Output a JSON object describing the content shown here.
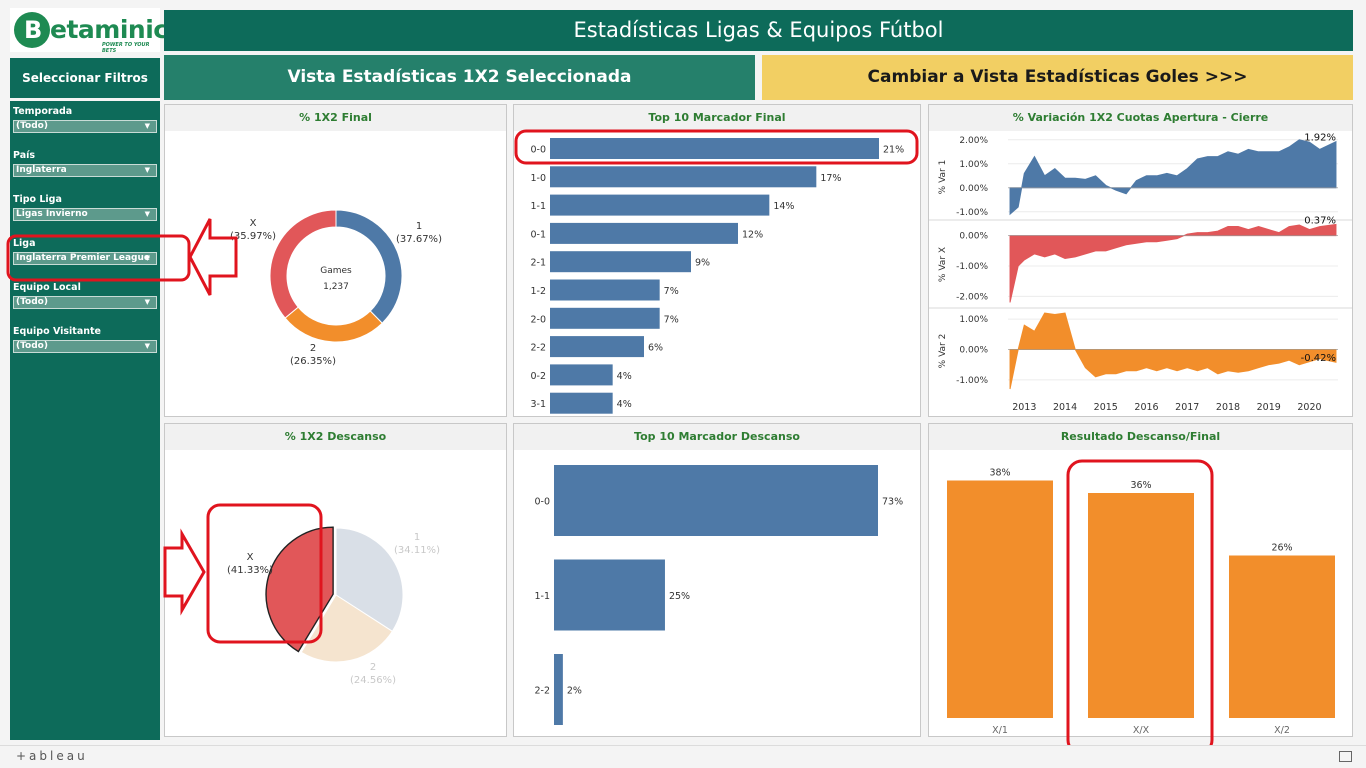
{
  "brand": {
    "name": "Betaminic",
    "initial": "B",
    "rest": "etaminic",
    "tagline": "POWER TO YOUR BETS"
  },
  "header": {
    "title": "Estadísticas Ligas & Equipos Fútbol"
  },
  "filters": {
    "heading": "Seleccionar Filtros",
    "items": [
      {
        "label": "Temporada",
        "value": "(Todo)"
      },
      {
        "label": "País",
        "value": "Inglaterra"
      },
      {
        "label": "Tipo Liga",
        "value": "Ligas Invierno"
      },
      {
        "label": "Liga",
        "value": "Inglaterra Premier League"
      },
      {
        "label": "Equipo Local",
        "value": "(Todo)"
      },
      {
        "label": "Equipo Visitante",
        "value": "(Todo)"
      }
    ]
  },
  "view": {
    "current": "Vista Estadísticas 1X2 Seleccionada",
    "switch": "Cambiar a Vista Estadísticas Goles >>>"
  },
  "footer": {
    "logo": "+ableau"
  },
  "colors": {
    "home": "#4e79a7",
    "draw": "#e15759",
    "away": "#f28e2b",
    "green": "#0d6b5a",
    "yellow": "#f2cf63",
    "highlight": "#e0141e"
  },
  "chart_data": [
    {
      "id": "final_1x2",
      "title": "% 1X2 Final",
      "type": "pie",
      "donut": true,
      "center_label": "Games",
      "center_value": "1,237",
      "slices": [
        {
          "name": "1",
          "pct": "(37.67%)",
          "value": 37.67,
          "color": "#4e79a7"
        },
        {
          "name": "2",
          "pct": "(26.35%)",
          "value": 26.35,
          "color": "#f28e2b"
        },
        {
          "name": "X",
          "pct": "(35.97%)",
          "value": 35.97,
          "color": "#e15759"
        }
      ]
    },
    {
      "id": "top10_final",
      "title": "Top 10 Marcador Final",
      "type": "bar",
      "orientation": "horizontal",
      "xlim": [
        0,
        21
      ],
      "categories": [
        "0-0",
        "1-0",
        "1-1",
        "0-1",
        "2-1",
        "1-2",
        "2-0",
        "2-2",
        "0-2",
        "3-1"
      ],
      "values": [
        21,
        17,
        14,
        12,
        9,
        7,
        7,
        6,
        4,
        4
      ],
      "labels": [
        "21%",
        "17%",
        "14%",
        "12%",
        "9%",
        "7%",
        "7%",
        "6%",
        "4%",
        "4%"
      ]
    },
    {
      "id": "variacion",
      "title": "% Variación 1X2 Cuotas Apertura - Cierre",
      "type": "area",
      "x_ticks": [
        "2013",
        "2014",
        "2015",
        "2016",
        "2017",
        "2018",
        "2019",
        "2020"
      ],
      "xlim": [
        2012.6,
        2020.7
      ],
      "panels": [
        {
          "ylabel": "% Var 1",
          "color": "#4e79a7",
          "ylim": [
            -1.3,
            2.2
          ],
          "ticks": [
            2,
            1,
            0,
            -1
          ],
          "tick_labels": [
            "2.00%",
            "1.00%",
            "0.00%",
            "-1.00%"
          ],
          "last_label": "1.92%",
          "x": [
            2012.65,
            2012.85,
            2013.0,
            2013.25,
            2013.5,
            2013.75,
            2014.0,
            2014.25,
            2014.5,
            2014.75,
            2015.0,
            2015.25,
            2015.5,
            2015.75,
            2016.0,
            2016.25,
            2016.5,
            2016.75,
            2017.0,
            2017.25,
            2017.5,
            2017.75,
            2018.0,
            2018.25,
            2018.5,
            2018.75,
            2019.0,
            2019.25,
            2019.5,
            2019.75,
            2020.0,
            2020.25,
            2020.65
          ],
          "y": [
            -1.1,
            -0.8,
            0.6,
            1.3,
            0.5,
            0.8,
            0.4,
            0.4,
            0.35,
            0.5,
            0.1,
            -0.1,
            -0.25,
            0.3,
            0.5,
            0.5,
            0.6,
            0.5,
            0.8,
            1.2,
            1.3,
            1.3,
            1.5,
            1.4,
            1.6,
            1.5,
            1.5,
            1.5,
            1.7,
            2.0,
            1.9,
            1.6,
            1.92
          ]
        },
        {
          "ylabel": "% Var X",
          "color": "#e15759",
          "ylim": [
            -2.35,
            0.45
          ],
          "ticks": [
            0,
            -1,
            -2
          ],
          "tick_labels": [
            "0.00%",
            "-1.00%",
            "-2.00%"
          ],
          "last_label": "0.37%",
          "x": [
            2012.65,
            2012.85,
            2013.0,
            2013.25,
            2013.5,
            2013.75,
            2014.0,
            2014.25,
            2014.5,
            2014.75,
            2015.0,
            2015.25,
            2015.5,
            2015.75,
            2016.0,
            2016.25,
            2016.5,
            2016.75,
            2017.0,
            2017.25,
            2017.5,
            2017.75,
            2018.0,
            2018.25,
            2018.5,
            2018.75,
            2019.0,
            2019.25,
            2019.5,
            2019.75,
            2020.0,
            2020.25,
            2020.65
          ],
          "y": [
            -2.2,
            -1.0,
            -0.8,
            -0.6,
            -0.7,
            -0.6,
            -0.75,
            -0.7,
            -0.6,
            -0.5,
            -0.5,
            -0.4,
            -0.3,
            -0.25,
            -0.2,
            -0.2,
            -0.15,
            -0.1,
            0.05,
            0.1,
            0.1,
            0.15,
            0.3,
            0.3,
            0.2,
            0.3,
            0.2,
            0.1,
            0.3,
            0.35,
            0.2,
            0.3,
            0.37
          ]
        },
        {
          "ylabel": "% Var 2",
          "color": "#f28e2b",
          "ylim": [
            -1.4,
            1.3
          ],
          "ticks": [
            1,
            0,
            -1
          ],
          "tick_labels": [
            "1.00%",
            "0.00%",
            "-1.00%"
          ],
          "last_label": "-0.42%",
          "x": [
            2012.65,
            2012.85,
            2013.0,
            2013.25,
            2013.5,
            2013.75,
            2014.0,
            2014.25,
            2014.5,
            2014.75,
            2015.0,
            2015.25,
            2015.5,
            2015.75,
            2016.0,
            2016.25,
            2016.5,
            2016.75,
            2017.0,
            2017.25,
            2017.5,
            2017.75,
            2018.0,
            2018.25,
            2018.5,
            2018.75,
            2019.0,
            2019.25,
            2019.5,
            2019.75,
            2020.0,
            2020.25,
            2020.65
          ],
          "y": [
            -1.3,
            0.0,
            0.8,
            0.6,
            1.2,
            1.15,
            1.2,
            0.0,
            -0.6,
            -0.9,
            -0.8,
            -0.8,
            -0.7,
            -0.7,
            -0.6,
            -0.7,
            -0.6,
            -0.7,
            -0.6,
            -0.7,
            -0.6,
            -0.8,
            -0.7,
            -0.75,
            -0.7,
            -0.6,
            -0.5,
            -0.45,
            -0.35,
            -0.5,
            -0.4,
            -0.3,
            -0.42
          ]
        }
      ]
    },
    {
      "id": "descanso_1x2",
      "title": "% 1X2 Descanso",
      "type": "pie",
      "donut": false,
      "slices": [
        {
          "name": "1",
          "pct": "(34.11%)",
          "value": 34.11,
          "color": "#d9dfe7"
        },
        {
          "name": "2",
          "pct": "(24.56%)",
          "value": 24.56,
          "color": "#f5e4cf"
        },
        {
          "name": "X",
          "pct": "(41.33%)",
          "value": 41.33,
          "color": "#e15759",
          "selected": true
        }
      ]
    },
    {
      "id": "top10_descanso",
      "title": "Top 10 Marcador Descanso",
      "type": "bar",
      "orientation": "horizontal",
      "xlim": [
        0,
        73
      ],
      "categories": [
        "0-0",
        "1-1",
        "2-2"
      ],
      "values": [
        73,
        25,
        2
      ],
      "labels": [
        "73%",
        "25%",
        "2%"
      ]
    },
    {
      "id": "resultado",
      "title": "Resultado Descanso/Final",
      "type": "bar",
      "orientation": "vertical",
      "ylim": [
        0,
        40
      ],
      "categories": [
        "X/1",
        "X/X",
        "X/2"
      ],
      "values": [
        38,
        36,
        26
      ],
      "labels": [
        "38%",
        "36%",
        "26%"
      ]
    }
  ]
}
